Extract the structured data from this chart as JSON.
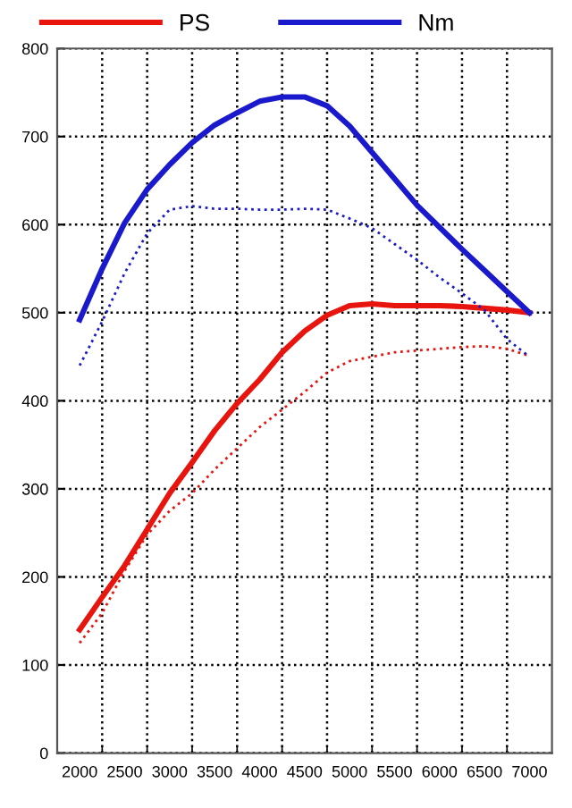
{
  "chart_data": {
    "type": "line",
    "legend": "top",
    "grid": true,
    "xlim": [
      1750,
      7250
    ],
    "ylim": [
      0,
      800
    ],
    "xticks": [
      2000,
      {
        "value": 2250,
        "label": null
      },
      2500,
      {
        "value": 2750,
        "label": null
      },
      3000,
      {
        "value": 3250,
        "label": null
      },
      3500,
      {
        "value": 3750,
        "label": null
      },
      4000,
      {
        "value": 4250,
        "label": null
      },
      4500,
      {
        "value": 4750,
        "label": null
      },
      5000,
      {
        "value": 5250,
        "label": null
      },
      5500,
      {
        "value": 5750,
        "label": null
      },
      6000,
      {
        "value": 6250,
        "label": null
      },
      6500,
      {
        "value": 6750,
        "label": null
      },
      7000
    ],
    "yticks": [
      0,
      100,
      200,
      300,
      400,
      500,
      600,
      700,
      800
    ],
    "x": [
      2000,
      2250,
      2500,
      2750,
      3000,
      3250,
      3500,
      3750,
      4000,
      4250,
      4500,
      4750,
      5000,
      5250,
      5500,
      5750,
      6000,
      6250,
      6500,
      6750,
      7000
    ],
    "series": [
      {
        "name": "PS",
        "color": "#e8140e",
        "line_style": "solid",
        "values": [
          140,
          177,
          213,
          254,
          295,
          330,
          366,
          397,
          424,
          455,
          479,
          497,
          508,
          510,
          508,
          508,
          508,
          507,
          505,
          503,
          500
        ]
      },
      {
        "name": "Nm",
        "color": "#1a1acc",
        "line_style": "solid",
        "values": [
          492,
          550,
          602,
          640,
          668,
          693,
          713,
          727,
          740,
          745,
          745,
          735,
          712,
          682,
          652,
          622,
          597,
          572,
          548,
          524,
          500
        ]
      },
      {
        "color": "#e8140e",
        "line_style": "dotted",
        "values": [
          125,
          159,
          207,
          248,
          275,
          295,
          322,
          346,
          370,
          390,
          410,
          432,
          445,
          450,
          455,
          457,
          459,
          461,
          462,
          459,
          451
        ]
      },
      {
        "color": "#1a1acc",
        "line_style": "dotted",
        "values": [
          440,
          490,
          545,
          590,
          617,
          621,
          618,
          618,
          617,
          617,
          618,
          617,
          607,
          596,
          578,
          560,
          540,
          522,
          503,
          470,
          450
        ]
      }
    ]
  }
}
